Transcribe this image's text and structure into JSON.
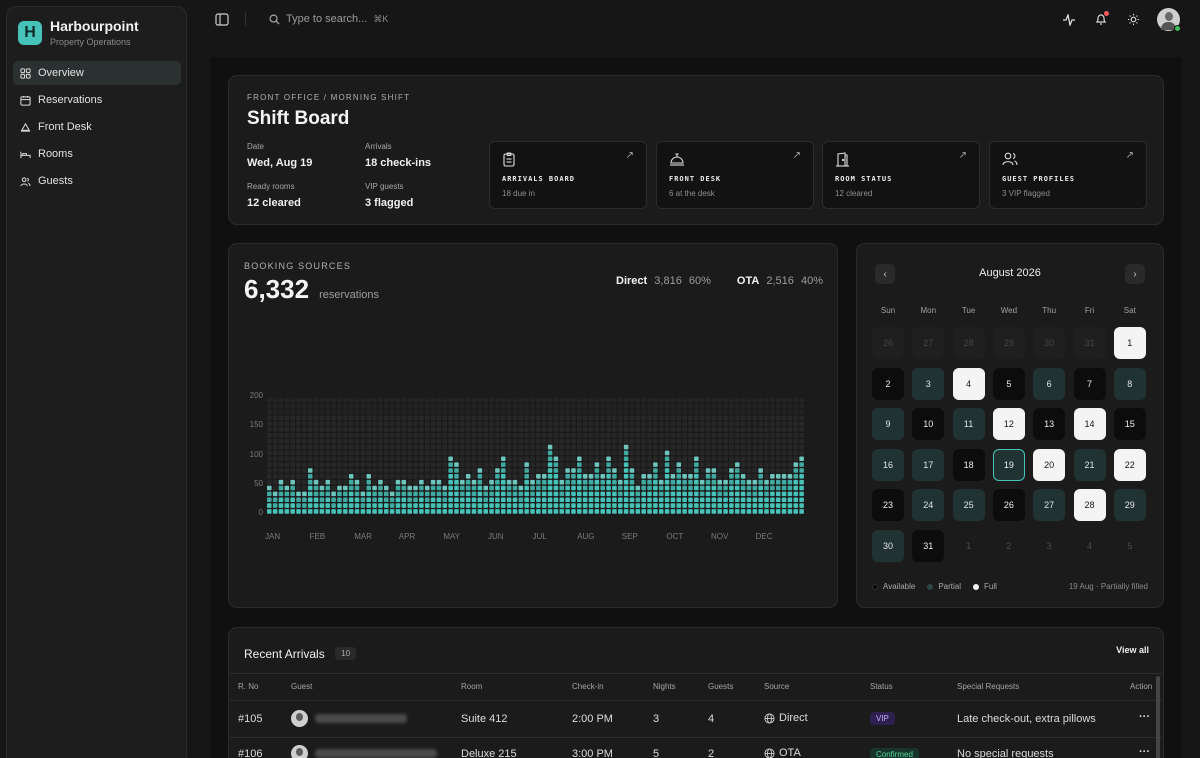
{
  "app": {
    "name": "Harbourpoint",
    "subtitle": "Property Operations",
    "logo_letter": "H"
  },
  "sidebar": {
    "items": [
      {
        "label": "Overview",
        "icon": "grid-icon",
        "active": true
      },
      {
        "label": "Reservations",
        "icon": "calendar-icon"
      },
      {
        "label": "Front Desk",
        "icon": "bell-desk-icon"
      },
      {
        "label": "Rooms",
        "icon": "bed-icon"
      },
      {
        "label": "Guests",
        "icon": "users-icon"
      }
    ]
  },
  "topbar": {
    "search_placeholder": "Type to search...",
    "shortcut": "⌘K"
  },
  "shift": {
    "eyebrow": "FRONT OFFICE / MORNING SHIFT",
    "title": "Shift Board",
    "kv": [
      {
        "label": "Date",
        "value": "Wed, Aug 19"
      },
      {
        "label": "Arrivals",
        "value": "18 check-ins"
      },
      {
        "label": "Ready rooms",
        "value": "12 cleared"
      },
      {
        "label": "VIP guests",
        "value": "3 flagged"
      }
    ],
    "tiles": [
      {
        "title": "ARRIVALS BOARD",
        "sub": "18 due in",
        "icon": "clipboard-icon"
      },
      {
        "title": "FRONT DESK",
        "sub": "6 at the desk",
        "icon": "service-bell-icon"
      },
      {
        "title": "ROOM STATUS",
        "sub": "12 cleared",
        "icon": "door-icon"
      },
      {
        "title": "GUEST PROFILES",
        "sub": "3 VIP flagged",
        "icon": "users-icon"
      }
    ]
  },
  "booking": {
    "eyebrow": "BOOKING SOURCES",
    "total": "6,332",
    "unit": "reservations",
    "direct": {
      "label": "Direct",
      "value": "3,816",
      "pct": "60%"
    },
    "ota": {
      "label": "OTA",
      "value": "2,516",
      "pct": "40%"
    }
  },
  "chart_data": {
    "type": "bar",
    "title": "BOOKING SOURCES",
    "xlabel": "",
    "ylabel": "",
    "ylim": [
      0,
      200
    ],
    "yticks": [
      "0",
      "50",
      "100",
      "150",
      "200"
    ],
    "x_tick_labels": [
      "JAN",
      "FEB",
      "MAR",
      "APR",
      "MAY",
      "JUN",
      "JUL",
      "AUG",
      "SEP",
      "OCT",
      "NOV",
      "DEC"
    ],
    "values": [
      50,
      35,
      60,
      45,
      55,
      40,
      40,
      75,
      60,
      45,
      55,
      35,
      50,
      45,
      65,
      55,
      40,
      70,
      50,
      60,
      45,
      40,
      60,
      55,
      45,
      50,
      60,
      45,
      60,
      60,
      50,
      100,
      85,
      55,
      70,
      60,
      80,
      45,
      60,
      80,
      95,
      55,
      60,
      50,
      90,
      55,
      70,
      65,
      115,
      100,
      60,
      80,
      75,
      95,
      65,
      70,
      90,
      70,
      100,
      80,
      60,
      120,
      80,
      45,
      70,
      70,
      90,
      60,
      110,
      65,
      85,
      65,
      65,
      95,
      55,
      75,
      75,
      55,
      60,
      75,
      90,
      70,
      55,
      60,
      80,
      55,
      70,
      65,
      65,
      70,
      85,
      100
    ],
    "grid": false,
    "legend": "none",
    "colors": {
      "bar": "#47c2b8",
      "bar_bright": "#7be3da",
      "empty": "#2a2a2a"
    }
  },
  "calendar": {
    "month": "August 2026",
    "dow": [
      "Sun",
      "Mon",
      "Tue",
      "Wed",
      "Thu",
      "Fri",
      "Sat"
    ],
    "days": [
      {
        "d": "26",
        "s": "prev"
      },
      {
        "d": "27",
        "s": "prev"
      },
      {
        "d": "28",
        "s": "prev"
      },
      {
        "d": "29",
        "s": "prev"
      },
      {
        "d": "30",
        "s": "prev"
      },
      {
        "d": "31",
        "s": "prev"
      },
      {
        "d": "1",
        "s": "full"
      },
      {
        "d": "2",
        "s": "avail"
      },
      {
        "d": "3",
        "s": "partial"
      },
      {
        "d": "4",
        "s": "full"
      },
      {
        "d": "5",
        "s": "avail"
      },
      {
        "d": "6",
        "s": "partial"
      },
      {
        "d": "7",
        "s": "avail"
      },
      {
        "d": "8",
        "s": "partial"
      },
      {
        "d": "9",
        "s": "partial"
      },
      {
        "d": "10",
        "s": "avail"
      },
      {
        "d": "11",
        "s": "partial"
      },
      {
        "d": "12",
        "s": "full"
      },
      {
        "d": "13",
        "s": "avail"
      },
      {
        "d": "14",
        "s": "full"
      },
      {
        "d": "15",
        "s": "avail"
      },
      {
        "d": "16",
        "s": "partial"
      },
      {
        "d": "17",
        "s": "partial"
      },
      {
        "d": "18",
        "s": "avail"
      },
      {
        "d": "19",
        "s": "today"
      },
      {
        "d": "20",
        "s": "full"
      },
      {
        "d": "21",
        "s": "partial"
      },
      {
        "d": "22",
        "s": "full"
      },
      {
        "d": "23",
        "s": "avail"
      },
      {
        "d": "24",
        "s": "partial"
      },
      {
        "d": "25",
        "s": "partial"
      },
      {
        "d": "26",
        "s": "avail"
      },
      {
        "d": "27",
        "s": "partial"
      },
      {
        "d": "28",
        "s": "full"
      },
      {
        "d": "29",
        "s": "partial"
      },
      {
        "d": "30",
        "s": "partial"
      },
      {
        "d": "31",
        "s": "avail"
      },
      {
        "d": "1",
        "s": "next"
      },
      {
        "d": "2",
        "s": "next"
      },
      {
        "d": "3",
        "s": "next"
      },
      {
        "d": "4",
        "s": "next"
      },
      {
        "d": "5",
        "s": "next"
      }
    ],
    "legend": [
      "Available",
      "Partial",
      "Full"
    ],
    "note": "19 Aug · Partially filled"
  },
  "arrivals": {
    "title": "Recent Arrivals",
    "count": "10",
    "view_all": "View all",
    "columns": [
      "R. No",
      "Guest",
      "Room",
      "Check-in",
      "Nights",
      "Guests",
      "Source",
      "Status",
      "Special Requests",
      "Action"
    ],
    "rows": [
      {
        "rno": "#105",
        "room": "Suite 412",
        "checkin": "2:00 PM",
        "nights": "3",
        "guests": "4",
        "source": "Direct",
        "status": "VIP",
        "status_type": "vip",
        "requests": "Late check-out, extra pillows",
        "action": "···"
      },
      {
        "rno": "#106",
        "room": "Deluxe 215",
        "checkin": "3:00 PM",
        "nights": "5",
        "guests": "2",
        "source": "OTA",
        "status": "Confirmed",
        "status_type": "conf",
        "requests": "No special requests",
        "action": "···"
      }
    ]
  }
}
